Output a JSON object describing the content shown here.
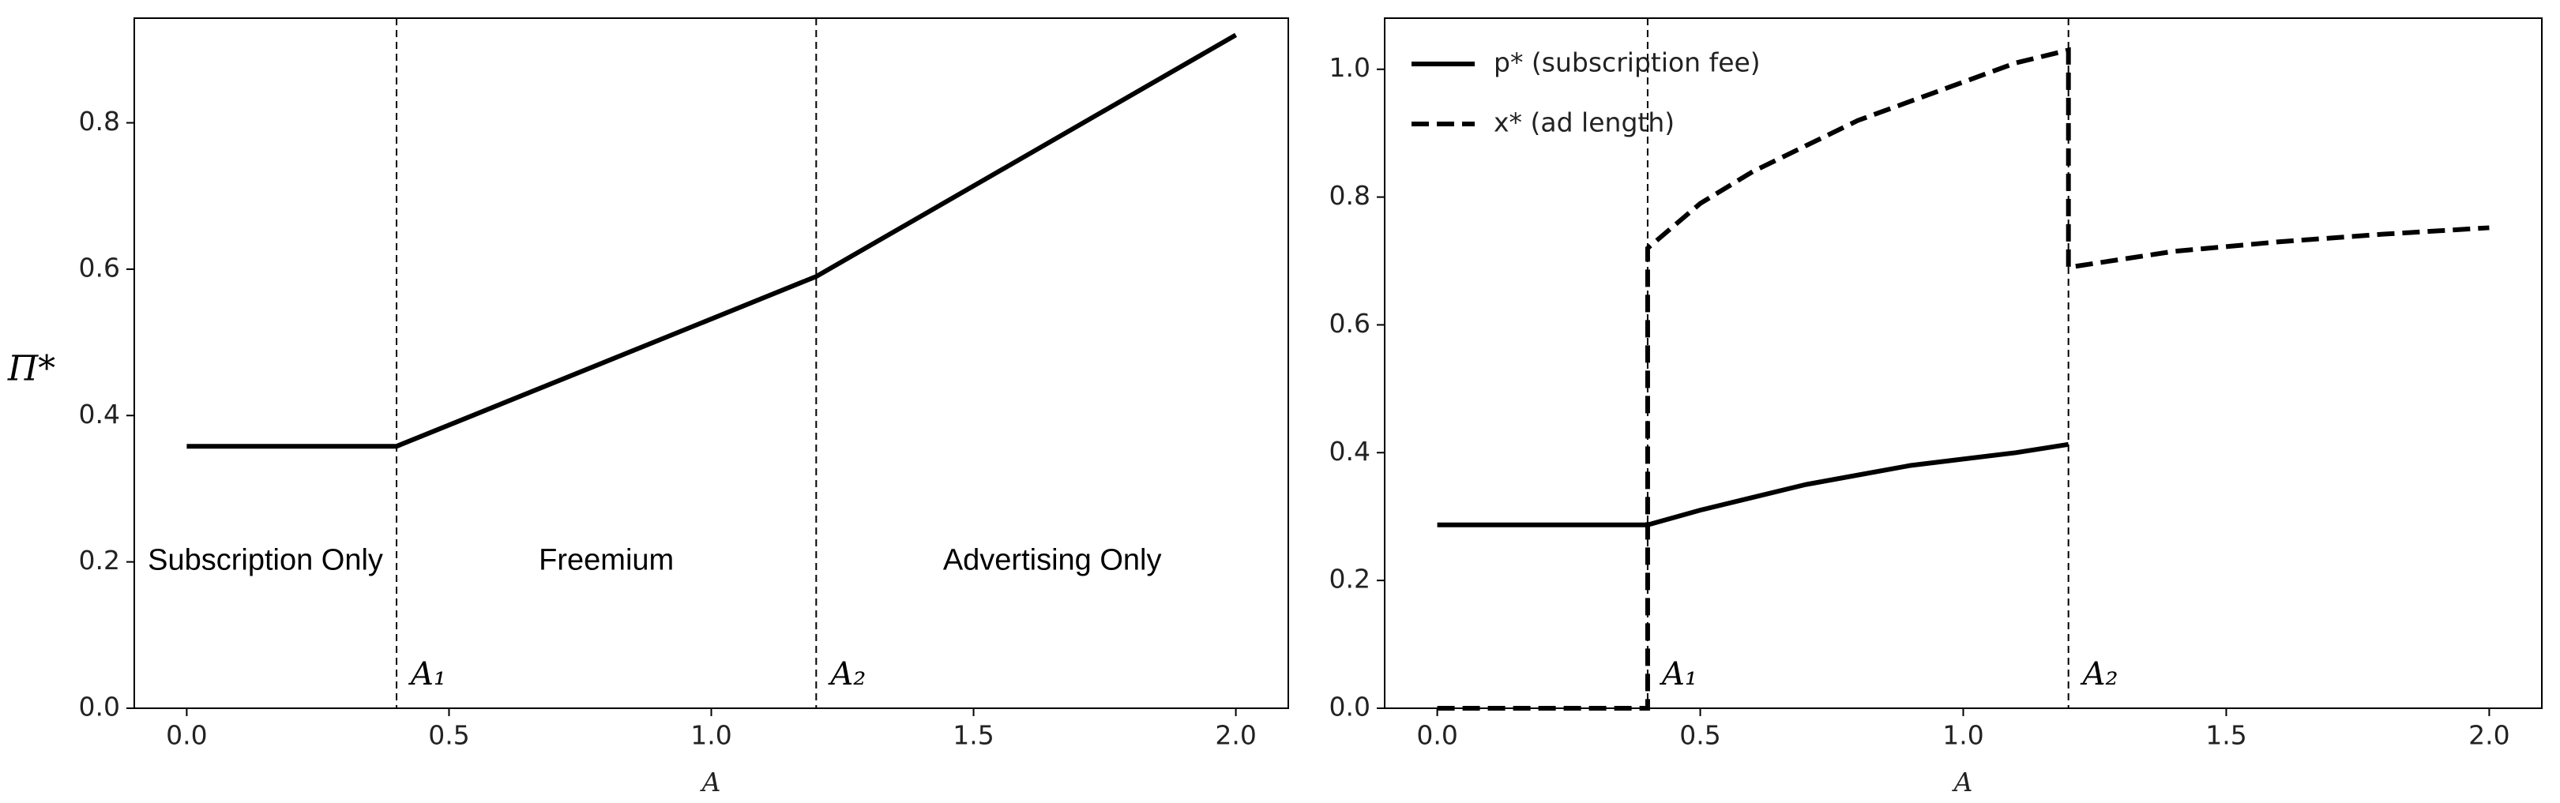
{
  "chart_data": [
    {
      "type": "line",
      "xlabel": "A",
      "ylabel": "Π*",
      "xlim": [
        -0.1,
        2.1
      ],
      "ylim": [
        0,
        0.943
      ],
      "xticks": [
        {
          "value": 0,
          "label": "0.0"
        },
        {
          "value": 0.5,
          "label": "0.5"
        },
        {
          "value": 1,
          "label": "1.0"
        },
        {
          "value": 1.5,
          "label": "1.5"
        },
        {
          "value": 2,
          "label": "2.0"
        }
      ],
      "yticks": [
        {
          "value": 0,
          "label": "0.0"
        },
        0.2,
        0.4,
        0.6,
        0.8
      ],
      "series": [
        {
          "name": null,
          "color": "#000000",
          "linestyle": "solid",
          "x": [
            0,
            0.4,
            1.2,
            2.0
          ],
          "values": [
            0.358,
            0.358,
            0.59,
            0.92
          ]
        }
      ],
      "vlines": [
        {
          "x": 0.4,
          "label": "A₁"
        },
        {
          "x": 1.2,
          "label": "A₂"
        }
      ],
      "regions": [
        "Subscription Only",
        "Freemium",
        "Advertising Only"
      ]
    },
    {
      "type": "line",
      "xlabel": "A",
      "xlim": [
        -0.1,
        2.1
      ],
      "ylim": [
        0,
        1.08
      ],
      "xticks": [
        {
          "value": 0,
          "label": "0.0"
        },
        {
          "value": 0.5,
          "label": "0.5"
        },
        {
          "value": 1,
          "label": "1.0"
        },
        {
          "value": 1.5,
          "label": "1.5"
        },
        {
          "value": 2,
          "label": "2.0"
        }
      ],
      "yticks": [
        {
          "value": 0,
          "label": "0.0"
        },
        0.2,
        0.4,
        0.6,
        0.8,
        {
          "value": 1,
          "label": "1.0"
        }
      ],
      "legend": "upper left",
      "series": [
        {
          "name": "p* (subscription fee)",
          "color": "#000000",
          "linestyle": "solid",
          "x": [
            0,
            0.4,
            0.5,
            0.6,
            0.7,
            0.8,
            0.9,
            1.0,
            1.1,
            1.2
          ],
          "values": [
            0.287,
            0.287,
            0.31,
            0.33,
            0.35,
            0.365,
            0.38,
            0.39,
            0.4,
            0.413
          ]
        },
        {
          "name": "x* (ad length)",
          "color": "#000000",
          "linestyle": "dashed",
          "x": [
            0,
            0.4,
            0.4,
            0.5,
            0.6,
            0.7,
            0.8,
            0.9,
            1.0,
            1.1,
            1.2,
            1.2,
            1.4,
            1.6,
            1.8,
            2.0
          ],
          "values": [
            0,
            0,
            0.72,
            0.79,
            0.84,
            0.88,
            0.92,
            0.95,
            0.98,
            1.01,
            1.03,
            0.69,
            0.715,
            0.73,
            0.742,
            0.752
          ]
        }
      ],
      "vlines": [
        {
          "x": 0.4,
          "label": "A₁"
        },
        {
          "x": 1.2,
          "label": "A₂"
        }
      ]
    }
  ]
}
